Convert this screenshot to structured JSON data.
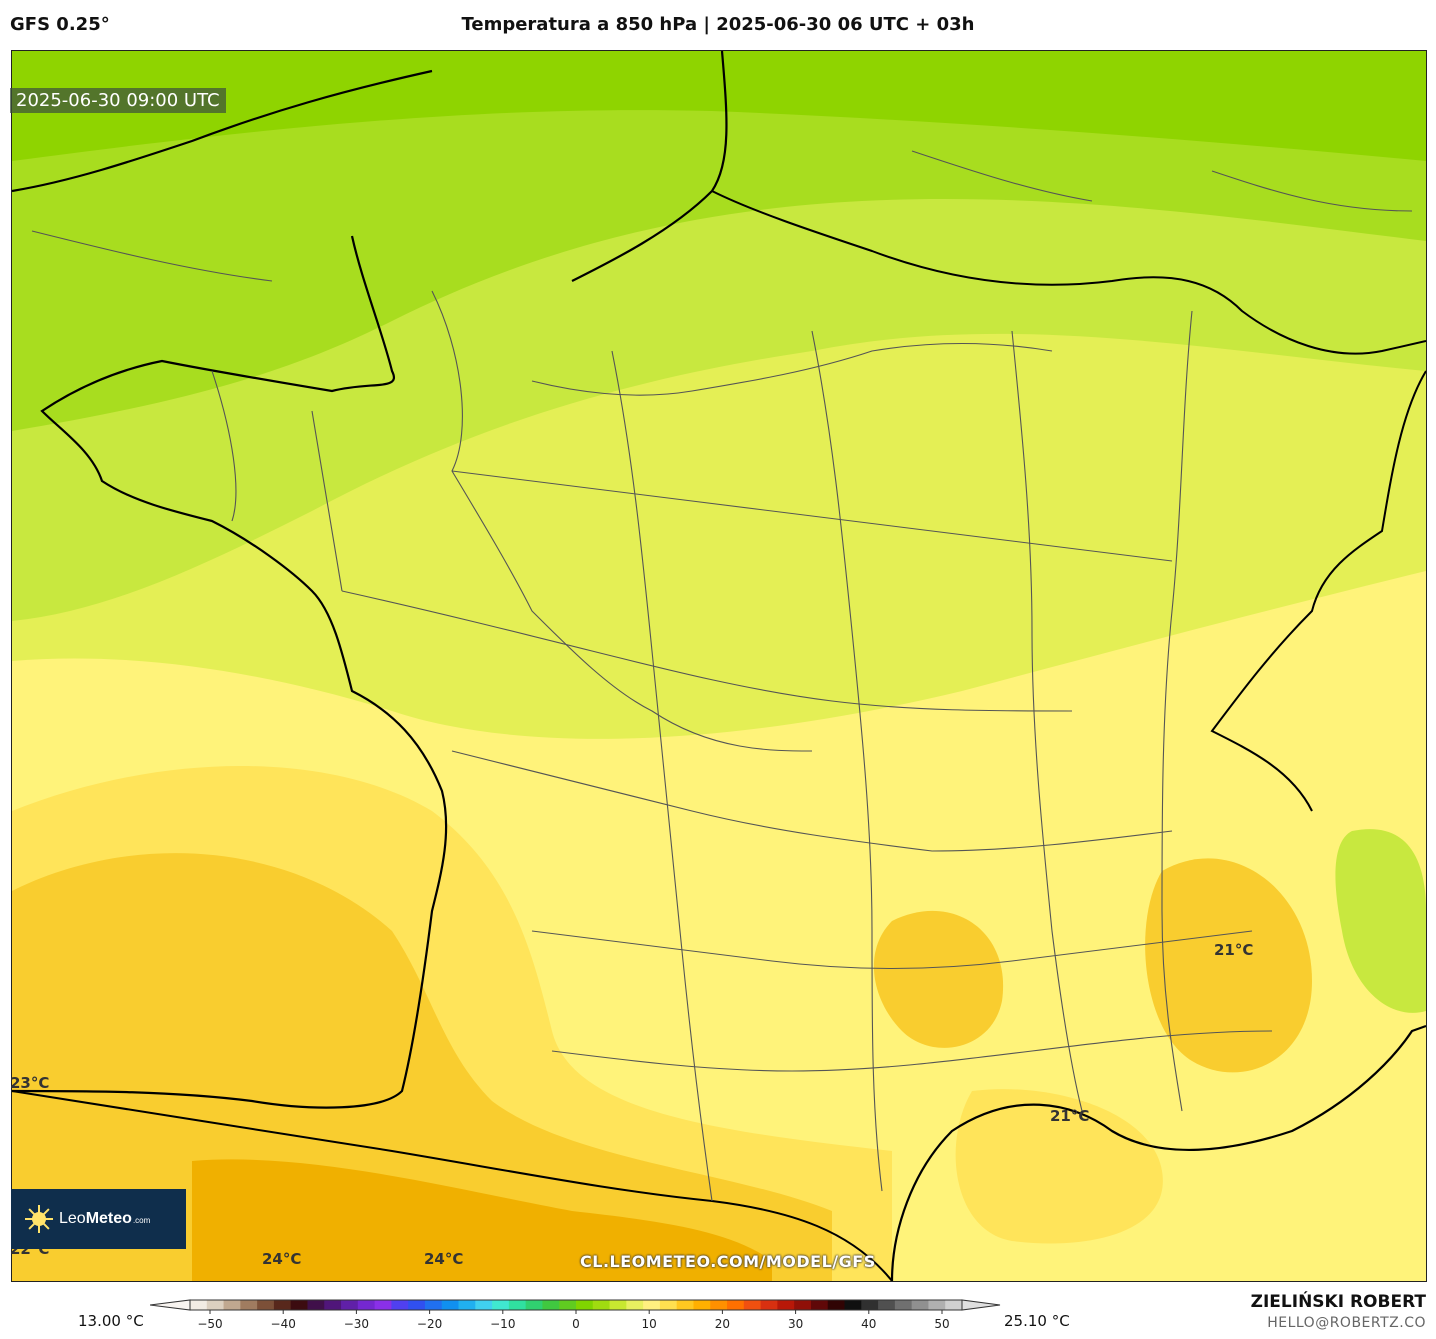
{
  "header": {
    "model": "GFS 0.25°",
    "title": "Temperatura a 850 hPa | 2025-06-30 06 UTC + 03h"
  },
  "map": {
    "timestamp": "2025-06-30 09:00 UTC",
    "watermark": "CL.LEOMETEO.COM/MODEL/GFS",
    "contour_labels": [
      {
        "id": "label-23-west",
        "text": "23°C"
      },
      {
        "id": "label-22-sw",
        "text": "22°C"
      },
      {
        "id": "label-24-a",
        "text": "24°C"
      },
      {
        "id": "label-24-b",
        "text": "24°C"
      },
      {
        "id": "label-21-gulf",
        "text": "21°C"
      },
      {
        "id": "label-21-provence",
        "text": "21°C"
      }
    ],
    "palette": {
      "north_green": "#8fd400",
      "mid_green": "#bde33a",
      "light_yellow_green": "#e4ef55",
      "pale_yellow": "#fff37a",
      "yellow": "#ffe45a",
      "orange_yellow": "#f7c320",
      "orange": "#f0b000",
      "border_gray": "#555555",
      "coast_black": "#000000"
    }
  },
  "logo": {
    "brand_light": "Leo",
    "brand_bold": "Meteo",
    "suffix": ".com"
  },
  "legend": {
    "min_label": "13.00 °C",
    "max_label": "25.10 °C",
    "ticks": [
      "−50",
      "−40",
      "−30",
      "−20",
      "−10",
      "0",
      "10",
      "20",
      "30",
      "40",
      "50"
    ]
  },
  "credits": {
    "author": "ZIELIŃSKI ROBERT",
    "email": "HELLO@ROBERTZ.CO"
  }
}
